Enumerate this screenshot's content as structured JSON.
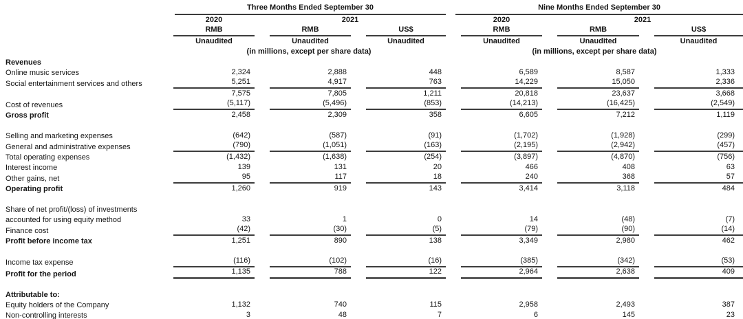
{
  "header": {
    "groups": [
      {
        "title": "Three Months Ended September 30",
        "years": [
          "2020",
          "2021"
        ],
        "currencies": [
          "RMB",
          "RMB",
          "US$"
        ],
        "audit": [
          "Unaudited",
          "Unaudited",
          "Unaudited"
        ],
        "note": "(in millions, except per share data)"
      },
      {
        "title": "Nine Months Ended September 30",
        "years": [
          "2020",
          "2021"
        ],
        "currencies": [
          "RMB",
          "RMB",
          "US$"
        ],
        "audit": [
          "Unaudited",
          "Unaudited",
          "Unaudited"
        ],
        "note": "(in millions, except per share data)"
      }
    ]
  },
  "table": {
    "rows": [
      {
        "label": "Revenues",
        "bold": true,
        "values": [
          "",
          "",
          "",
          "",
          "",
          ""
        ],
        "rule": "none"
      },
      {
        "label": "Online music services",
        "bold": false,
        "values": [
          "2,324",
          "2,888",
          "448",
          "6,589",
          "8,587",
          "1,333"
        ],
        "rule": "none"
      },
      {
        "label": "Social entertainment services and others",
        "bold": false,
        "values": [
          "5,251",
          "4,917",
          "763",
          "14,229",
          "15,050",
          "2,336"
        ],
        "rule": "thin"
      },
      {
        "label": "",
        "bold": false,
        "values": [
          "7,575",
          "7,805",
          "1,211",
          "20,818",
          "23,637",
          "3,668"
        ],
        "rule": "none"
      },
      {
        "label": "Cost of revenues",
        "bold": false,
        "values": [
          "(5,117)",
          "(5,496)",
          "(853)",
          "(14,213)",
          "(16,425)",
          "(2,549)"
        ],
        "rule": "thin"
      },
      {
        "label": "Gross profit",
        "bold": true,
        "values": [
          "2,458",
          "2,309",
          "358",
          "6,605",
          "7,212",
          "1,119"
        ],
        "rule": "none"
      },
      {
        "spacer": true
      },
      {
        "label": "Selling and marketing expenses",
        "bold": false,
        "values": [
          "(642)",
          "(587)",
          "(91)",
          "(1,702)",
          "(1,928)",
          "(299)"
        ],
        "rule": "none"
      },
      {
        "label": "General and administrative expenses",
        "bold": false,
        "values": [
          "(790)",
          "(1,051)",
          "(163)",
          "(2,195)",
          "(2,942)",
          "(457)"
        ],
        "rule": "thin"
      },
      {
        "label": "Total operating expenses",
        "bold": false,
        "values": [
          "(1,432)",
          "(1,638)",
          "(254)",
          "(3,897)",
          "(4,870)",
          "(756)"
        ],
        "rule": "none"
      },
      {
        "label": "Interest income",
        "bold": false,
        "values": [
          "139",
          "131",
          "20",
          "466",
          "408",
          "63"
        ],
        "rule": "none"
      },
      {
        "label": "Other gains, net",
        "bold": false,
        "values": [
          "95",
          "117",
          "18",
          "240",
          "368",
          "57"
        ],
        "rule": "thin"
      },
      {
        "label": "Operating profit",
        "bold": true,
        "values": [
          "1,260",
          "919",
          "143",
          "3,414",
          "3,118",
          "484"
        ],
        "rule": "none"
      },
      {
        "spacer": true
      },
      {
        "label": "Share of net profit/(loss) of investments",
        "bold": false,
        "values": [
          "",
          "",
          "",
          "",
          "",
          ""
        ],
        "rule": "none"
      },
      {
        "label": "accounted for using equity method",
        "bold": false,
        "values": [
          "33",
          "1",
          "0",
          "14",
          "(48)",
          "(7)"
        ],
        "rule": "none"
      },
      {
        "label": "Finance cost",
        "bold": false,
        "values": [
          "(42)",
          "(30)",
          "(5)",
          "(79)",
          "(90)",
          "(14)"
        ],
        "rule": "thin"
      },
      {
        "label": "Profit before income tax",
        "bold": true,
        "values": [
          "1,251",
          "890",
          "138",
          "3,349",
          "2,980",
          "462"
        ],
        "rule": "none"
      },
      {
        "spacer": true
      },
      {
        "label": "Income tax expense",
        "bold": false,
        "values": [
          "(116)",
          "(102)",
          "(16)",
          "(385)",
          "(342)",
          "(53)"
        ],
        "rule": "thin"
      },
      {
        "label": "Profit for the period",
        "bold": true,
        "values": [
          "1,135",
          "788",
          "122",
          "2,964",
          "2,638",
          "409"
        ],
        "rule": "thick"
      },
      {
        "spacer": true
      },
      {
        "label": "Attributable to:",
        "bold": true,
        "values": [
          "",
          "",
          "",
          "",
          "",
          ""
        ],
        "rule": "none"
      },
      {
        "label": "Equity holders of the Company",
        "bold": false,
        "values": [
          "1,132",
          "740",
          "115",
          "2,958",
          "2,493",
          "387"
        ],
        "rule": "none"
      },
      {
        "label": "Non-controlling interests",
        "bold": false,
        "values": [
          "3",
          "48",
          "7",
          "6",
          "145",
          "23"
        ],
        "rule": "none"
      }
    ]
  }
}
